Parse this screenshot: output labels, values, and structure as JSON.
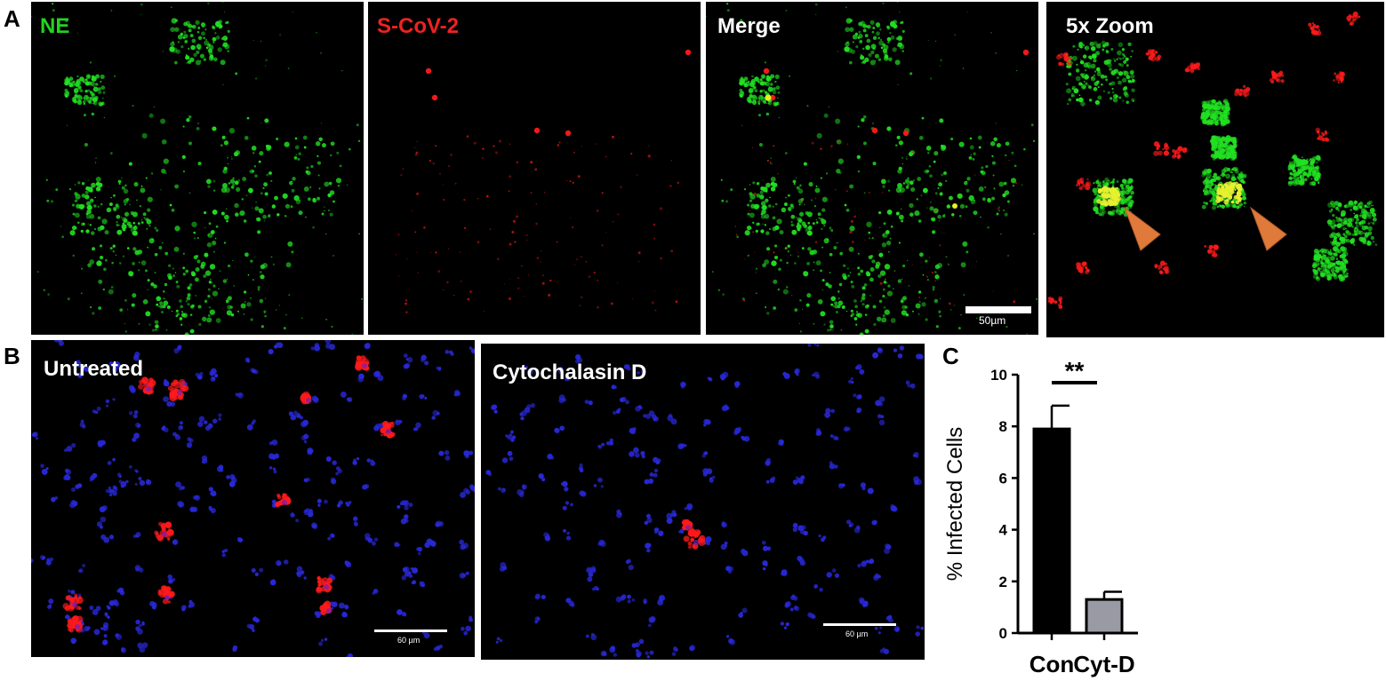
{
  "panels": {
    "a": "A",
    "b": "B",
    "c": "C"
  },
  "row_a": {
    "ne": "NE",
    "scov": "S-CoV-2",
    "merge": "Merge",
    "zoom": "5x Zoom",
    "scale": "50µm"
  },
  "row_b": {
    "untreated": "Untreated",
    "cytod": "Cytochalasin D",
    "scale_untreated": "60 µm",
    "scale_cytod": "60 µm"
  },
  "colors": {
    "ne_green": "#22e022",
    "scov_red": "#ff1a1a",
    "nucleus_blue": "#2828d8",
    "arrow": "#e07a3a",
    "bar_con": "#000000",
    "bar_cytd": "#9a9aa4"
  },
  "chart_data": {
    "type": "bar",
    "categories": [
      "Con",
      "Cyt-D"
    ],
    "values": [
      7.9,
      1.3
    ],
    "errors": [
      0.9,
      0.3
    ],
    "ylabel": "% Infected Cells",
    "ylim": [
      0,
      10
    ],
    "yticks": [
      "0",
      "2",
      "4",
      "6",
      "8",
      "10"
    ],
    "significance": "**"
  }
}
